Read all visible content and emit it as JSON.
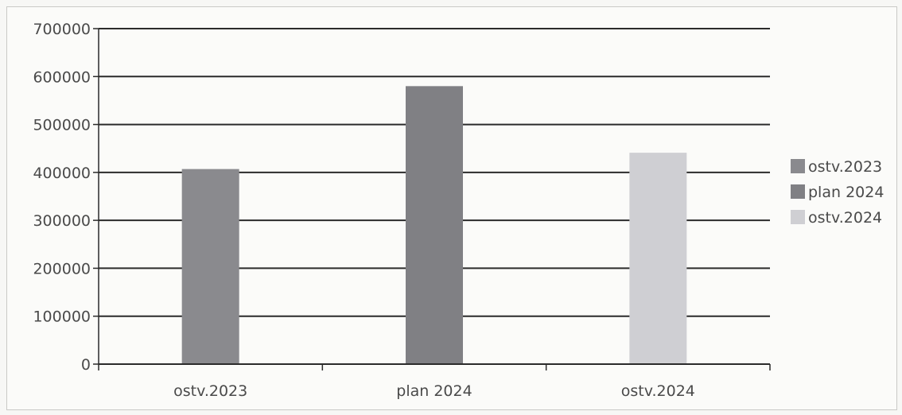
{
  "chart_data": {
    "type": "bar",
    "title": "",
    "xlabel": "",
    "ylabel": "",
    "categories": [
      "ostv.2023",
      "plan 2024",
      "ostv.2024"
    ],
    "series": [
      {
        "name": "ostv.2023",
        "color": "#8a8a8e",
        "values": [
          407000,
          null,
          null
        ]
      },
      {
        "name": "plan 2024",
        "color": "#808084",
        "values": [
          null,
          580000,
          null
        ]
      },
      {
        "name": "ostv.2024",
        "color": "#cfcfd3",
        "values": [
          null,
          null,
          441000
        ]
      }
    ],
    "ylim": [
      0,
      700000
    ],
    "yticks": [
      "0",
      "100000",
      "200000",
      "300000",
      "400000",
      "500000",
      "600000",
      "700000"
    ],
    "grid": true,
    "legend_position": "right"
  }
}
